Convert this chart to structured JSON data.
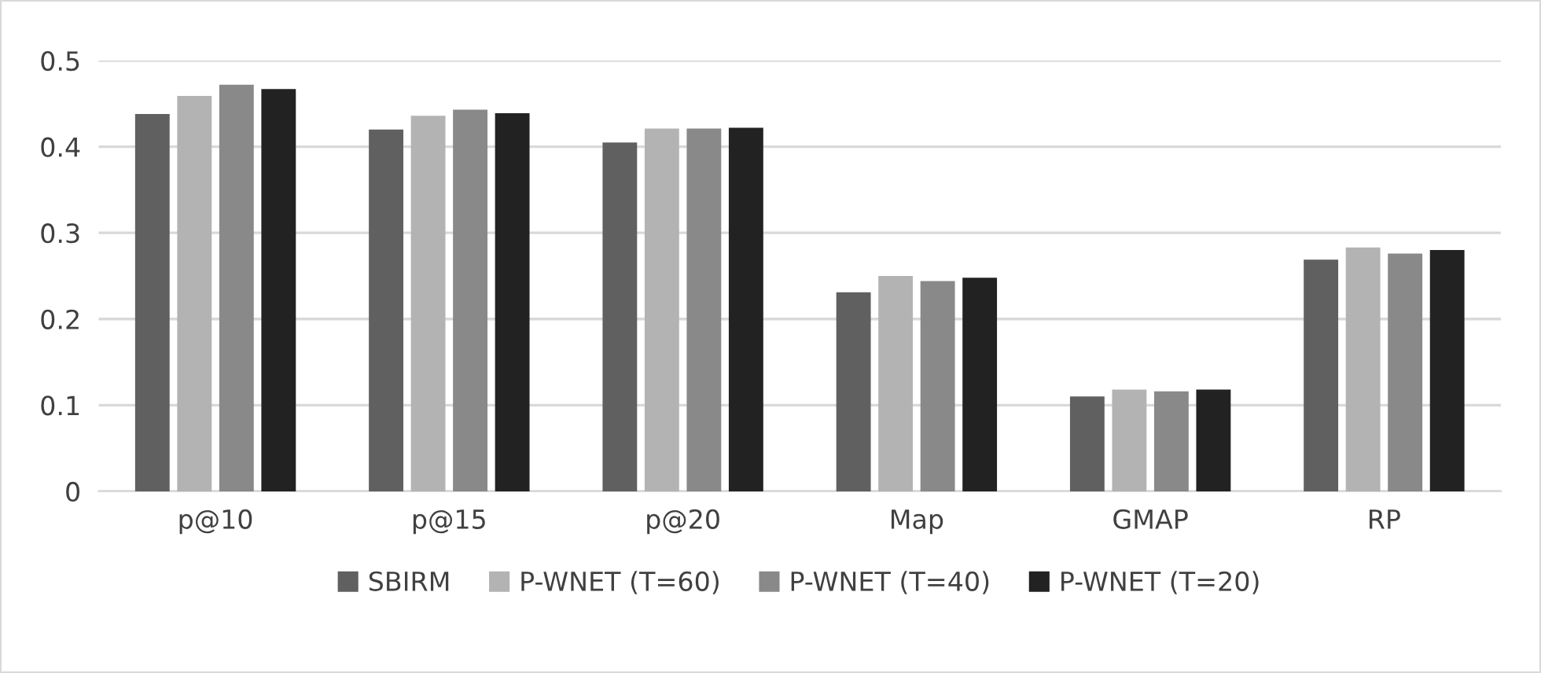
{
  "chart_data": {
    "type": "bar",
    "categories": [
      "p@10",
      "p@15",
      "p@20",
      "Map",
      "GMAP",
      "RP"
    ],
    "series": [
      {
        "name": "SBIRM",
        "color": "#606060",
        "values": [
          0.438,
          0.42,
          0.405,
          0.231,
          0.11,
          0.269
        ]
      },
      {
        "name": "P-WNET (T=60)",
        "color": "#b3b3b3",
        "values": [
          0.459,
          0.436,
          0.421,
          0.25,
          0.118,
          0.283
        ]
      },
      {
        "name": "P-WNET (T=40)",
        "color": "#898989",
        "values": [
          0.472,
          0.443,
          0.421,
          0.244,
          0.116,
          0.276
        ]
      },
      {
        "name": "P-WNET (T=20)",
        "color": "#222222",
        "values": [
          0.467,
          0.439,
          0.422,
          0.248,
          0.118,
          0.28
        ]
      }
    ],
    "ylim": [
      0,
      0.5
    ],
    "yticks": [
      0,
      0.1,
      0.2,
      0.3,
      0.4,
      0.5
    ],
    "grid": "y",
    "legend": "bottom"
  }
}
